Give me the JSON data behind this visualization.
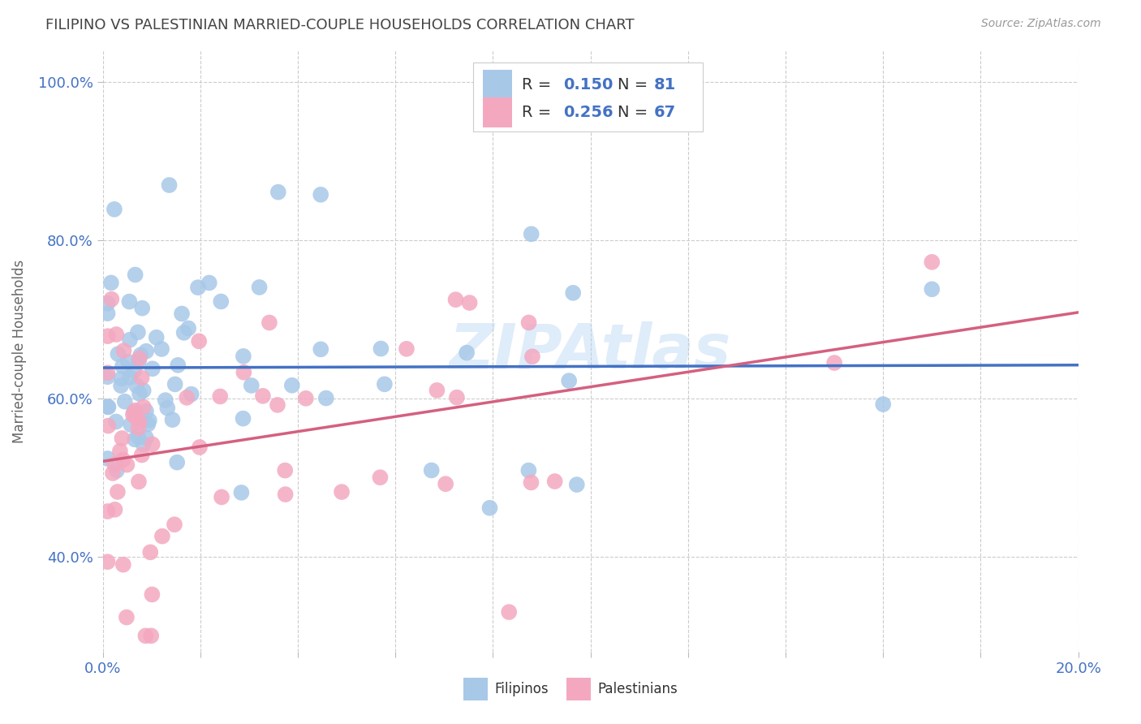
{
  "title": "FILIPINO VS PALESTINIAN MARRIED-COUPLE HOUSEHOLDS CORRELATION CHART",
  "source": "Source: ZipAtlas.com",
  "ylabel_label": "Married-couple Households",
  "xlim": [
    0.0,
    0.2
  ],
  "ylim": [
    0.28,
    1.04
  ],
  "xticks": [
    0.0,
    0.02,
    0.04,
    0.06,
    0.08,
    0.1,
    0.12,
    0.14,
    0.16,
    0.18,
    0.2
  ],
  "yticks": [
    0.4,
    0.6,
    0.8,
    1.0
  ],
  "yticklabels": [
    "40.0%",
    "60.0%",
    "80.0%",
    "100.0%"
  ],
  "filipino_R": 0.15,
  "filipino_N": 81,
  "palestinian_R": 0.256,
  "palestinian_N": 67,
  "filipino_color": "#a8c8e8",
  "palestinian_color": "#f4a8c0",
  "filipino_line_color": "#4472c4",
  "palestinian_line_color": "#d46080",
  "background_color": "#ffffff",
  "grid_color": "#cccccc",
  "watermark": "ZIPAtlas",
  "title_color": "#444444",
  "axis_color": "#4472c4"
}
